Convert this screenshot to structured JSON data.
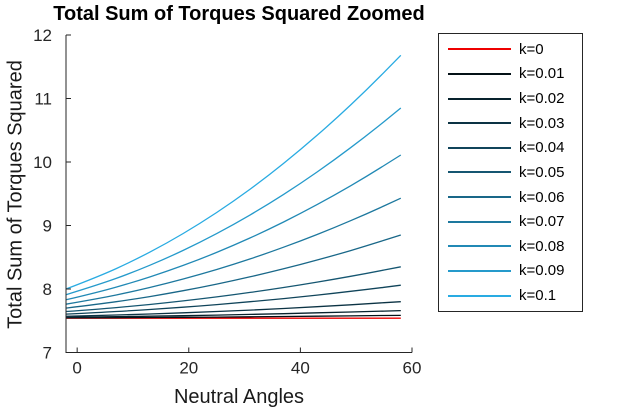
{
  "figure": {
    "background": "#ffffff",
    "axis_color": "#262626",
    "text_color": "#1a1a1a"
  },
  "chart_data": {
    "type": "line",
    "title": "Total Sum of Torques Squared Zoomed",
    "xlabel": "Neutral Angles",
    "ylabel": "Total Sum of Torques Squared",
    "xlim": [
      -2,
      60
    ],
    "ylim": [
      7,
      12
    ],
    "x_ticks": [
      0,
      20,
      40,
      60
    ],
    "y_ticks": [
      7,
      8,
      9,
      10,
      11,
      12
    ],
    "grid": false,
    "box": false,
    "tick_dir": "in",
    "legend_position": "outside-right",
    "x": [
      -2,
      4,
      10,
      16,
      22,
      28,
      34,
      40,
      46,
      52,
      58
    ],
    "series": [
      {
        "name": "k=0",
        "color": "#ee0000",
        "values": [
          7.54,
          7.54,
          7.54,
          7.54,
          7.54,
          7.54,
          7.54,
          7.54,
          7.54,
          7.54,
          7.54
        ]
      },
      {
        "name": "k=0.01",
        "color": "#041117",
        "values": [
          7.545,
          7.547,
          7.55,
          7.553,
          7.556,
          7.56,
          7.564,
          7.569,
          7.574,
          7.579,
          7.585
        ]
      },
      {
        "name": "k=0.02",
        "color": "#08222d",
        "values": [
          7.555,
          7.561,
          7.568,
          7.576,
          7.584,
          7.594,
          7.605,
          7.618,
          7.631,
          7.645,
          7.66
        ]
      },
      {
        "name": "k=0.03",
        "color": "#0c3344",
        "values": [
          7.57,
          7.583,
          7.598,
          7.615,
          7.634,
          7.656,
          7.68,
          7.707,
          7.736,
          7.767,
          7.8
        ]
      },
      {
        "name": "k=0.04",
        "color": "#10445a",
        "values": [
          7.605,
          7.63,
          7.66,
          7.694,
          7.732,
          7.776,
          7.823,
          7.876,
          7.933,
          7.994,
          8.06
        ]
      },
      {
        "name": "k=0.05",
        "color": "#155671",
        "values": [
          7.645,
          7.684,
          7.73,
          7.783,
          7.842,
          7.909,
          7.983,
          8.065,
          8.153,
          8.248,
          8.35
        ]
      },
      {
        "name": "k=0.06",
        "color": "#196788",
        "values": [
          7.7,
          7.763,
          7.838,
          7.924,
          8.022,
          8.131,
          8.252,
          8.384,
          8.528,
          8.683,
          8.85
        ]
      },
      {
        "name": "k=0.07",
        "color": "#1d789e",
        "values": [
          7.76,
          7.852,
          7.96,
          8.086,
          8.228,
          8.386,
          8.562,
          8.754,
          8.962,
          9.188,
          9.43
        ]
      },
      {
        "name": "k=0.08",
        "color": "#2189b5",
        "values": [
          7.83,
          7.955,
          8.104,
          8.275,
          8.468,
          8.685,
          8.924,
          9.187,
          9.472,
          9.779,
          10.11
        ]
      },
      {
        "name": "k=0.09",
        "color": "#259acb",
        "values": [
          7.91,
          8.072,
          8.263,
          8.483,
          8.733,
          9.013,
          9.321,
          9.659,
          10.027,
          10.424,
          10.85
        ]
      },
      {
        "name": "k=0.1",
        "color": "#29abe2",
        "values": [
          8.0,
          8.202,
          8.442,
          8.718,
          9.03,
          9.38,
          9.766,
          10.19,
          10.65,
          11.146,
          11.68
        ]
      }
    ]
  }
}
